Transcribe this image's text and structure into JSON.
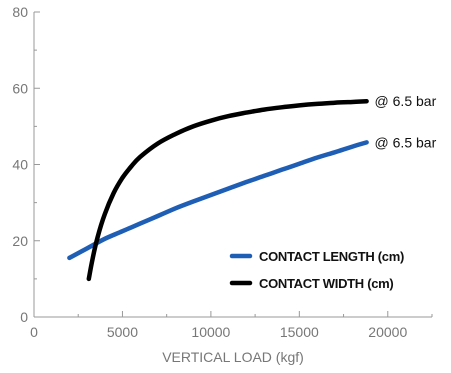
{
  "chart_data": {
    "type": "line",
    "xlabel": "VERTICAL LOAD (kgf)",
    "ylabel": "",
    "xlim": [
      0,
      22500
    ],
    "ylim": [
      0,
      80
    ],
    "x_ticks": [
      0,
      5000,
      10000,
      15000,
      20000
    ],
    "y_ticks": [
      0,
      20,
      40,
      60,
      80
    ],
    "grid": false,
    "legend_position": "bottom-right",
    "series": [
      {
        "name": "CONTACT LENGTH (cm)",
        "color": "#1f5eb5",
        "annotation": "@ 6.5 bar",
        "x": [
          2000,
          3000,
          4000,
          5000,
          6000,
          7000,
          8000,
          9000,
          10000,
          11000,
          12000,
          13000,
          14000,
          15000,
          16000,
          17000,
          18000,
          18800
        ],
        "y": [
          15.5,
          18,
          20.5,
          22.5,
          24.5,
          26.5,
          28.5,
          30.3,
          32,
          33.7,
          35.4,
          37,
          38.6,
          40.2,
          41.8,
          43.2,
          44.7,
          45.8
        ]
      },
      {
        "name": "CONTACT WIDTH (cm)",
        "color": "#000000",
        "annotation": "@ 6.5 bar",
        "x": [
          3100,
          3300,
          3600,
          4000,
          4500,
          5000,
          5500,
          6000,
          7000,
          8000,
          9000,
          10000,
          11000,
          12000,
          13000,
          14000,
          15000,
          16000,
          17000,
          18000,
          18800
        ],
        "y": [
          10,
          15,
          21,
          27,
          32.5,
          36.5,
          39.5,
          42,
          45.5,
          48,
          50,
          51.5,
          52.7,
          53.6,
          54.4,
          55,
          55.5,
          55.9,
          56.2,
          56.4,
          56.6
        ]
      }
    ]
  }
}
